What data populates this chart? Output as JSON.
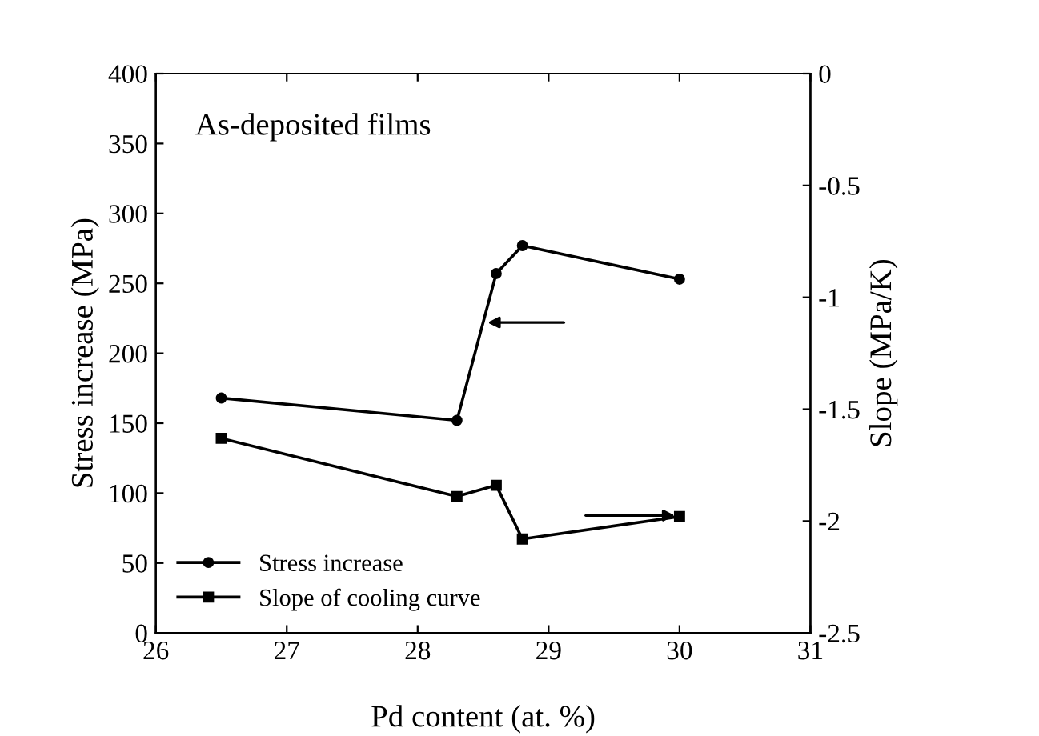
{
  "chart_data": {
    "type": "line",
    "annotations": [
      "As-deposited films"
    ],
    "xlabel": "Pd content (at. %)",
    "ylabel": "Stress increase (MPa)",
    "y2label": "Slope (MPa/K)",
    "x": [
      26.5,
      28.3,
      28.6,
      28.8,
      30
    ],
    "series": [
      {
        "name": "Stress increase",
        "color": "#000000",
        "marker": "circle",
        "values": [
          168,
          152,
          257,
          277,
          253
        ]
      },
      {
        "name": "Slope of cooling curve",
        "color": "#000000",
        "marker": "square",
        "axis": "y2",
        "values": [
          -1.63,
          -1.89,
          -1.84,
          -2.08,
          -1.98
        ]
      }
    ],
    "xlim": [
      26,
      31
    ],
    "xticks": [
      26,
      27,
      28,
      29,
      30,
      31
    ],
    "ylim": [
      0,
      400
    ],
    "yticks": [
      0,
      50,
      100,
      150,
      200,
      250,
      300,
      350,
      400
    ],
    "y2lim": [
      -2.5,
      0
    ],
    "y2ticks": [
      -2.5,
      -2,
      -1.5,
      -1,
      -0.5,
      0
    ],
    "legend": "bottom left",
    "line_style": "solid"
  }
}
